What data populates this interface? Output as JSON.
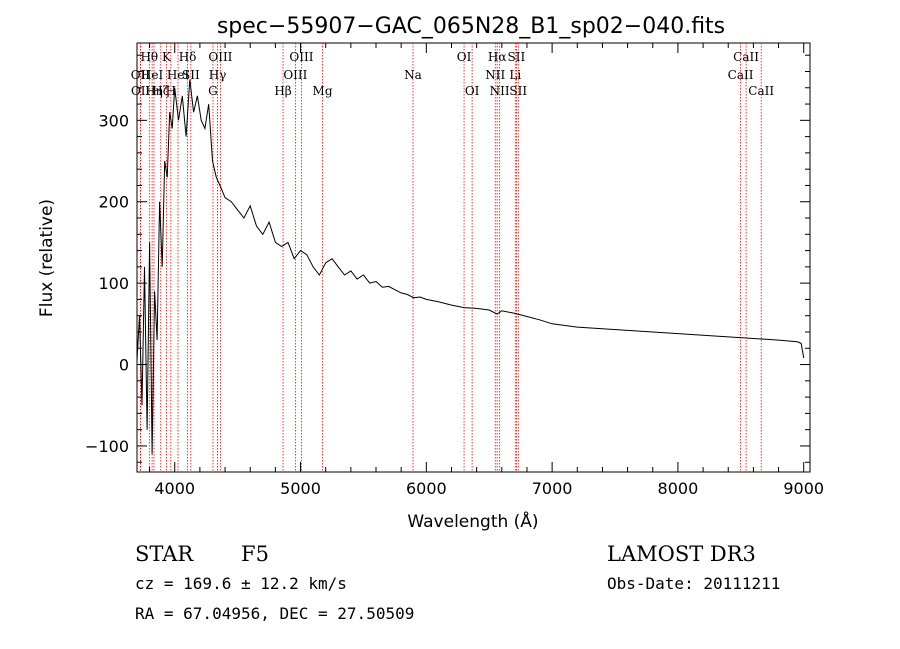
{
  "chart_data": {
    "type": "line",
    "title": "spec−55907−GAC_065N28_B1_sp02−040.fits",
    "xlabel": "Wavelength (Å)",
    "ylabel": "Flux (relative)",
    "xlim": [
      3700,
      9050
    ],
    "ylim": [
      -132,
      395
    ],
    "xticks": [
      {
        "value": 4000,
        "label": "4000"
      },
      {
        "value": 5000,
        "label": "5000"
      },
      {
        "value": 6000,
        "label": "6000"
      },
      {
        "value": 7000,
        "label": "7000"
      },
      {
        "value": 8000,
        "label": "8000"
      },
      {
        "value": 9000,
        "label": "9000"
      }
    ],
    "yticks": [
      {
        "value": -100,
        "label": "−100"
      },
      {
        "value": 0,
        "label": "0"
      },
      {
        "value": 100,
        "label": "100"
      },
      {
        "value": 200,
        "label": "200"
      },
      {
        "value": 300,
        "label": "300"
      }
    ],
    "line_color": "#ff0000",
    "series": [
      {
        "name": "spectrum",
        "color": "#000000",
        "x": [
          3700,
          3720,
          3740,
          3760,
          3780,
          3800,
          3820,
          3840,
          3860,
          3880,
          3900,
          3920,
          3940,
          3960,
          3980,
          4000,
          4030,
          4060,
          4090,
          4120,
          4150,
          4180,
          4210,
          4240,
          4270,
          4300,
          4330,
          4360,
          4400,
          4450,
          4500,
          4550,
          4600,
          4650,
          4700,
          4750,
          4800,
          4850,
          4900,
          4950,
          5000,
          5050,
          5100,
          5150,
          5200,
          5250,
          5300,
          5350,
          5400,
          5450,
          5500,
          5550,
          5600,
          5650,
          5700,
          5750,
          5800,
          5850,
          5900,
          5950,
          6000,
          6100,
          6200,
          6300,
          6400,
          6500,
          6563,
          6600,
          6700,
          6800,
          6900,
          7000,
          7200,
          7400,
          7600,
          7800,
          8000,
          8200,
          8400,
          8600,
          8800,
          8950,
          8980,
          9000
        ],
        "y": [
          5,
          60,
          -50,
          120,
          -80,
          150,
          -110,
          90,
          30,
          200,
          120,
          250,
          230,
          310,
          290,
          340,
          300,
          330,
          280,
          350,
          310,
          330,
          300,
          290,
          320,
          250,
          230,
          220,
          205,
          200,
          190,
          180,
          195,
          170,
          160,
          175,
          150,
          145,
          150,
          130,
          140,
          135,
          120,
          110,
          125,
          130,
          120,
          110,
          115,
          105,
          110,
          100,
          102,
          95,
          96,
          92,
          88,
          86,
          82,
          83,
          80,
          77,
          73,
          70,
          69,
          67,
          62,
          66,
          63,
          59,
          55,
          50,
          46,
          44,
          42,
          40,
          38,
          36,
          34,
          32,
          30,
          28,
          26,
          8
        ]
      }
    ],
    "lines": [
      {
        "wl": 3727,
        "label": "OII",
        "row": 2
      },
      {
        "wl": 3729,
        "label": "OII",
        "row": 3
      },
      {
        "wl": 3798,
        "label": "Hθ",
        "row": 1
      },
      {
        "wl": 3820,
        "label": "HeI",
        "row": 2
      },
      {
        "wl": 3835,
        "label": "Hη",
        "row": 3
      },
      {
        "wl": 3889,
        "label": "Hζ",
        "row": 3
      },
      {
        "wl": 3934,
        "label": "K",
        "row": 1
      },
      {
        "wl": 3969,
        "label": "H",
        "row": 3
      },
      {
        "wl": 4026,
        "label": "HeI",
        "row": 2
      },
      {
        "wl": 4102,
        "label": "Hδ",
        "row": 1
      },
      {
        "wl": 4128,
        "label": "SII",
        "row": 2
      },
      {
        "wl": 4304,
        "label": "G",
        "row": 3
      },
      {
        "wl": 4340,
        "label": "Hγ",
        "row": 2
      },
      {
        "wl": 4363,
        "label": "OIII",
        "row": 1
      },
      {
        "wl": 4861,
        "label": "Hβ",
        "row": 3
      },
      {
        "wl": 4959,
        "label": "OIII",
        "row": 2
      },
      {
        "wl": 5007,
        "label": "OIII",
        "row": 1
      },
      {
        "wl": 5175,
        "label": "Mg",
        "row": 3
      },
      {
        "wl": 5894,
        "label": "Na",
        "row": 2
      },
      {
        "wl": 6300,
        "label": "OI",
        "row": 1
      },
      {
        "wl": 6364,
        "label": "OI",
        "row": 3
      },
      {
        "wl": 6548,
        "label": "NII",
        "row": 2
      },
      {
        "wl": 6563,
        "label": "Hα",
        "row": 1
      },
      {
        "wl": 6583,
        "label": "NII",
        "row": 3
      },
      {
        "wl": 6707,
        "label": "Li",
        "row": 2
      },
      {
        "wl": 6716,
        "label": "SII",
        "row": 1
      },
      {
        "wl": 6731,
        "label": "SII",
        "row": 3
      },
      {
        "wl": 8498,
        "label": "CaII",
        "row": 2
      },
      {
        "wl": 8542,
        "label": "CaII",
        "row": 1
      },
      {
        "wl": 8662,
        "label": "CaII",
        "row": 3
      }
    ]
  },
  "info": {
    "object_class": "STAR",
    "subclass": "F5",
    "survey": "LAMOST DR3",
    "redshift": "cz = 169.6 ± 12.2 km/s",
    "obs_date": "Obs-Date: 20111211",
    "coords": "RA =  67.04956, DEC =  27.50509"
  }
}
